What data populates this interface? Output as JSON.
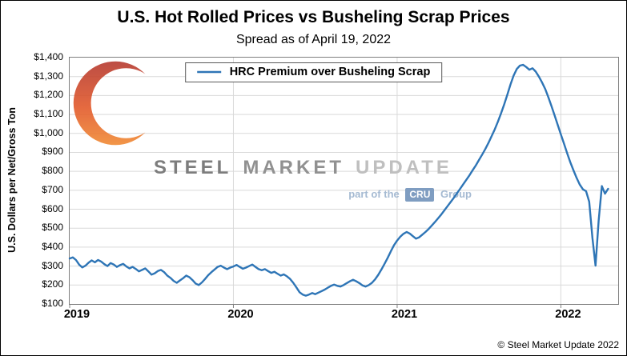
{
  "watermark": {
    "word1": "STEEL",
    "word2": "MARKET",
    "word3": "UPDATE",
    "tagline_prefix": "part of the",
    "tagline_box": "CRU",
    "tagline_suffix": "Group"
  },
  "footer": {
    "copyright": "© Steel Market Update 2022"
  },
  "chart_data": {
    "type": "line",
    "title": "U.S. Hot Rolled Prices vs Busheling Scrap Prices",
    "subtitle": "Spread as of April 19, 2022",
    "xlabel": "",
    "ylabel": "U.S. Dollars per Net/Gross Ton",
    "xlim": [
      2019,
      2022.35
    ],
    "ylim": [
      100,
      1400
    ],
    "grid": true,
    "legend_position": "top-center",
    "line_color": "#2E75B6",
    "grid_color": "#D9D9D9",
    "y_tick_values": [
      100,
      200,
      300,
      400,
      500,
      600,
      700,
      800,
      900,
      1000,
      1100,
      1200,
      1300,
      1400
    ],
    "y_tick_labels": [
      "$100",
      "$200",
      "$300",
      "$400",
      "$500",
      "$600",
      "$700",
      "$800",
      "$900",
      "$1,000",
      "$1,100",
      "$1,200",
      "$1,300",
      "$1,400"
    ],
    "x_tick_values": [
      2019,
      2020,
      2021,
      2022
    ],
    "x_tick_labels": [
      "2019",
      "2020",
      "2021",
      "2022"
    ],
    "series": [
      {
        "name": "HRC Premium over Busheling Scrap",
        "frequency": "weekly",
        "unit": "USD per net/gross ton",
        "x_start": 2019.0,
        "x_step": 0.01923077,
        "values": [
          340,
          346,
          332,
          308,
          293,
          302,
          318,
          330,
          320,
          332,
          324,
          310,
          300,
          316,
          308,
          296,
          305,
          312,
          298,
          288,
          296,
          285,
          272,
          280,
          288,
          272,
          255,
          262,
          274,
          280,
          268,
          250,
          238,
          222,
          212,
          224,
          236,
          250,
          242,
          226,
          208,
          200,
          214,
          232,
          252,
          268,
          282,
          296,
          302,
          292,
          284,
          292,
          298,
          306,
          296,
          286,
          292,
          300,
          308,
          296,
          284,
          278,
          284,
          274,
          264,
          270,
          260,
          250,
          256,
          246,
          232,
          212,
          188,
          162,
          150,
          144,
          150,
          158,
          152,
          160,
          168,
          176,
          186,
          196,
          202,
          196,
          192,
          200,
          210,
          220,
          228,
          220,
          210,
          198,
          192,
          200,
          212,
          230,
          254,
          282,
          312,
          344,
          378,
          410,
          435,
          455,
          470,
          480,
          472,
          458,
          445,
          452,
          466,
          480,
          496,
          514,
          532,
          552,
          572,
          594,
          616,
          638,
          660,
          684,
          708,
          732,
          756,
          780,
          806,
          832,
          860,
          888,
          918,
          950,
          985,
          1022,
          1062,
          1106,
          1154,
          1205,
          1258,
          1305,
          1340,
          1358,
          1362,
          1350,
          1336,
          1344,
          1326,
          1300,
          1270,
          1235,
          1192,
          1145,
          1095,
          1045,
          995,
          945,
          895,
          848,
          805,
          765,
          730,
          705,
          695,
          640,
          450,
          302,
          540,
          722,
          682,
          708
        ]
      }
    ]
  }
}
